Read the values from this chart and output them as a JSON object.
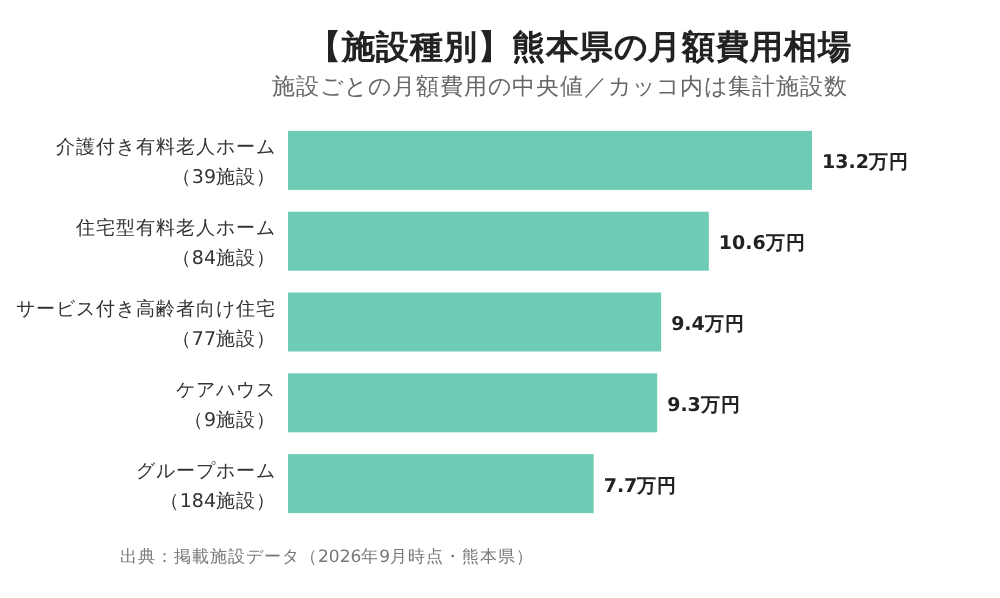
{
  "chart_data": {
    "type": "bar",
    "orientation": "horizontal",
    "title": "【施設種別】熊本県の月額費用相場",
    "subtitle": "施設ごとの月額費用の中央値／カッコ内は集計施設数",
    "categories": [
      "介護付き有料老人ホーム（39施設）",
      "住宅型有料老人ホーム（84施設）",
      "サービス付き高齢者向け住宅（77施設）",
      "ケアハウス（9施設）",
      "グループホーム（184施設）"
    ],
    "values": [
      13.2,
      10.6,
      9.4,
      9.3,
      7.7
    ],
    "value_labels": [
      "13.2万円",
      "10.6万円",
      "9.4万円",
      "9.3万円",
      "7.7万円"
    ],
    "color": "#6ecbb4",
    "annotations": [
      "出典：掲載施設データ（2026年9月時点・熊本県）"
    ]
  }
}
